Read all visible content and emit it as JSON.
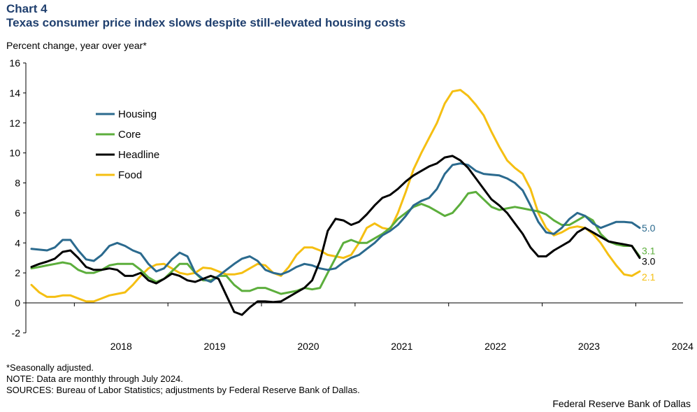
{
  "header": {
    "chart_label": "Chart 4",
    "title": "Texas consumer price index slows despite still-elevated housing costs",
    "subtitle": "Percent change, year over year*"
  },
  "notes": {
    "footnote": "*Seasonally adjusted.",
    "note": "NOTE: Data are monthly through July 2024.",
    "sources": "SOURCES: Bureau of Labor Statistics; adjustments by Federal Reserve Bank of Dallas."
  },
  "credit": "Federal Reserve Bank of Dallas",
  "chart_data": {
    "type": "line",
    "title": "Texas consumer price index slows despite still-elevated housing costs",
    "ylabel": "Percent change, year over year*",
    "xlabel": "",
    "ylim": [
      -2,
      16
    ],
    "yticks": [
      -2,
      0,
      2,
      4,
      6,
      8,
      10,
      12,
      14,
      16
    ],
    "x_ticks": [
      "2018",
      "2019",
      "2020",
      "2021",
      "2022",
      "2023",
      "2024"
    ],
    "x_start": "2017-07",
    "x_end": "2024-07",
    "legend_position": "upper-left",
    "series": [
      {
        "name": "Housing",
        "color": "#2b6a8e",
        "end_label": "5.0",
        "values": [
          3.6,
          3.55,
          3.5,
          3.7,
          4.2,
          4.2,
          3.5,
          2.9,
          2.8,
          3.2,
          3.8,
          4.0,
          3.8,
          3.5,
          3.3,
          2.6,
          2.1,
          2.3,
          2.9,
          3.35,
          3.1,
          2.0,
          1.6,
          1.4,
          1.8,
          2.2,
          2.6,
          2.95,
          3.1,
          2.8,
          2.2,
          2.0,
          1.9,
          2.1,
          2.4,
          2.6,
          2.5,
          2.3,
          2.2,
          2.3,
          2.7,
          3.0,
          3.2,
          3.6,
          4.0,
          4.5,
          4.8,
          5.2,
          5.8,
          6.5,
          6.8,
          7.0,
          7.6,
          8.6,
          9.2,
          9.3,
          9.2,
          8.8,
          8.6,
          8.55,
          8.5,
          8.3,
          8.0,
          7.5,
          6.5,
          5.4,
          4.7,
          4.6,
          5.0,
          5.6,
          6.0,
          5.8,
          5.3,
          5.0,
          5.2,
          5.4,
          5.4,
          5.35,
          5.0
        ]
      },
      {
        "name": "Core",
        "color": "#5cae3c",
        "end_label": "3.1",
        "values": [
          2.3,
          2.4,
          2.5,
          2.6,
          2.7,
          2.6,
          2.2,
          2.0,
          2.0,
          2.2,
          2.5,
          2.6,
          2.6,
          2.6,
          2.2,
          1.7,
          1.4,
          1.6,
          2.1,
          2.6,
          2.6,
          2.0,
          1.5,
          1.5,
          1.8,
          1.8,
          1.2,
          0.8,
          0.8,
          1.0,
          1.0,
          0.8,
          0.6,
          0.7,
          0.8,
          1.0,
          0.9,
          1.0,
          2.0,
          3.0,
          4.0,
          4.2,
          4.0,
          4.0,
          4.3,
          4.6,
          5.0,
          5.6,
          6.0,
          6.4,
          6.6,
          6.4,
          6.1,
          5.8,
          6.0,
          6.6,
          7.3,
          7.4,
          6.9,
          6.4,
          6.2,
          6.3,
          6.4,
          6.3,
          6.2,
          6.1,
          5.9,
          5.5,
          5.2,
          5.2,
          5.5,
          5.8,
          5.5,
          4.6,
          4.1,
          3.9,
          3.8,
          3.8,
          3.1
        ]
      },
      {
        "name": "Headline",
        "color": "#000000",
        "end_label": "3.0",
        "values": [
          2.4,
          2.6,
          2.75,
          2.95,
          3.4,
          3.5,
          3.0,
          2.4,
          2.2,
          2.2,
          2.3,
          2.2,
          1.8,
          1.8,
          2.0,
          1.5,
          1.3,
          1.6,
          1.95,
          1.8,
          1.5,
          1.4,
          1.6,
          1.8,
          1.6,
          0.5,
          -0.6,
          -0.8,
          -0.3,
          0.1,
          0.1,
          0.05,
          0.1,
          0.4,
          0.7,
          1.0,
          1.5,
          2.8,
          4.8,
          5.6,
          5.5,
          5.2,
          5.4,
          5.9,
          6.5,
          7.0,
          7.2,
          7.6,
          8.1,
          8.5,
          8.8,
          9.1,
          9.3,
          9.7,
          9.8,
          9.5,
          9.0,
          8.3,
          7.6,
          6.9,
          6.5,
          6.0,
          5.3,
          4.6,
          3.7,
          3.1,
          3.1,
          3.5,
          3.8,
          4.1,
          4.7,
          5.0,
          4.7,
          4.4,
          4.1,
          4.0,
          3.9,
          3.8,
          3.0
        ]
      },
      {
        "name": "Food",
        "color": "#f5bf12",
        "end_label": "2.1",
        "values": [
          1.2,
          0.7,
          0.4,
          0.4,
          0.5,
          0.5,
          0.3,
          0.1,
          0.1,
          0.3,
          0.5,
          0.6,
          0.7,
          1.2,
          1.8,
          2.3,
          2.55,
          2.6,
          2.3,
          2.0,
          1.9,
          2.0,
          2.35,
          2.3,
          2.1,
          1.9,
          1.9,
          2.0,
          2.3,
          2.6,
          2.5,
          2.0,
          1.8,
          2.4,
          3.2,
          3.7,
          3.7,
          3.5,
          3.2,
          3.1,
          3.0,
          3.2,
          4.0,
          5.0,
          5.3,
          5.0,
          4.9,
          6.0,
          7.4,
          8.9,
          10.0,
          11.0,
          12.0,
          13.3,
          14.1,
          14.2,
          13.8,
          13.2,
          12.5,
          11.4,
          10.4,
          9.5,
          9.0,
          8.6,
          7.6,
          6.0,
          5.0,
          4.5,
          4.7,
          5.0,
          5.1,
          5.0,
          4.6,
          4.0,
          3.2,
          2.5,
          1.9,
          1.8,
          2.1
        ]
      }
    ]
  }
}
